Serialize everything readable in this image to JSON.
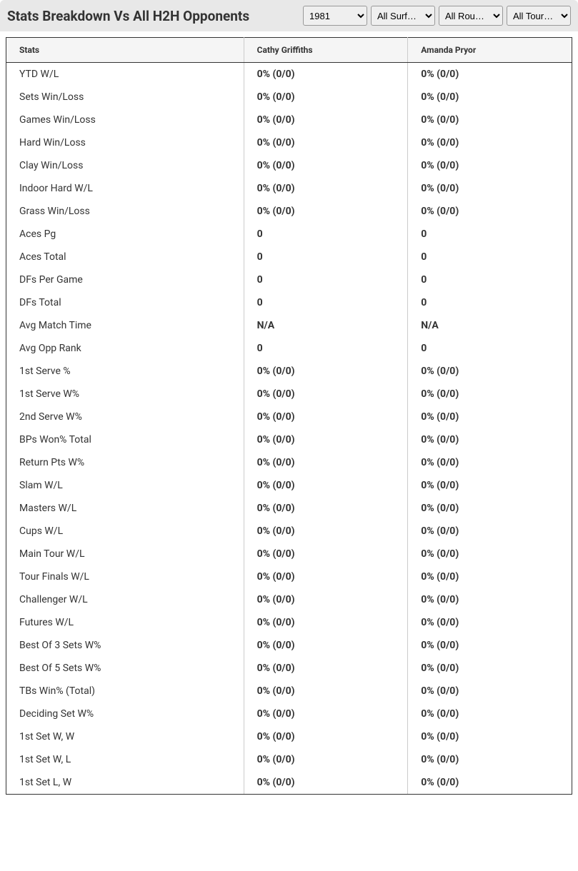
{
  "header": {
    "title": "Stats Breakdown Vs All H2H Opponents",
    "filters": {
      "year": {
        "selected": "1981",
        "options": [
          "1981"
        ]
      },
      "surface": {
        "selected": "All Surf…",
        "options": [
          "All Surf…"
        ]
      },
      "round": {
        "selected": "All Rou…",
        "options": [
          "All Rou…"
        ]
      },
      "tour": {
        "selected": "All Tour…",
        "options": [
          "All Tour…"
        ]
      }
    }
  },
  "table": {
    "columns": [
      "Stats",
      "Cathy Griffiths",
      "Amanda Pryor"
    ],
    "column_widths": [
      "42%",
      "29%",
      "29%"
    ],
    "header_bg": "#f5f5f5",
    "header_fontsize": 12,
    "cell_fontsize": 14,
    "border_color": "#333333",
    "inner_border_color": "#cccccc",
    "rows": [
      [
        "YTD W/L",
        "0% (0/0)",
        "0% (0/0)"
      ],
      [
        "Sets Win/Loss",
        "0% (0/0)",
        "0% (0/0)"
      ],
      [
        "Games Win/Loss",
        "0% (0/0)",
        "0% (0/0)"
      ],
      [
        "Hard Win/Loss",
        "0% (0/0)",
        "0% (0/0)"
      ],
      [
        "Clay Win/Loss",
        "0% (0/0)",
        "0% (0/0)"
      ],
      [
        "Indoor Hard W/L",
        "0% (0/0)",
        "0% (0/0)"
      ],
      [
        "Grass Win/Loss",
        "0% (0/0)",
        "0% (0/0)"
      ],
      [
        "Aces Pg",
        "0",
        "0"
      ],
      [
        "Aces Total",
        "0",
        "0"
      ],
      [
        "DFs Per Game",
        "0",
        "0"
      ],
      [
        "DFs Total",
        "0",
        "0"
      ],
      [
        "Avg Match Time",
        "N/A",
        "N/A"
      ],
      [
        "Avg Opp Rank",
        "0",
        "0"
      ],
      [
        "1st Serve %",
        "0% (0/0)",
        "0% (0/0)"
      ],
      [
        "1st Serve W%",
        "0% (0/0)",
        "0% (0/0)"
      ],
      [
        "2nd Serve W%",
        "0% (0/0)",
        "0% (0/0)"
      ],
      [
        "BPs Won% Total",
        "0% (0/0)",
        "0% (0/0)"
      ],
      [
        "Return Pts W%",
        "0% (0/0)",
        "0% (0/0)"
      ],
      [
        "Slam W/L",
        "0% (0/0)",
        "0% (0/0)"
      ],
      [
        "Masters W/L",
        "0% (0/0)",
        "0% (0/0)"
      ],
      [
        "Cups W/L",
        "0% (0/0)",
        "0% (0/0)"
      ],
      [
        "Main Tour W/L",
        "0% (0/0)",
        "0% (0/0)"
      ],
      [
        "Tour Finals W/L",
        "0% (0/0)",
        "0% (0/0)"
      ],
      [
        "Challenger W/L",
        "0% (0/0)",
        "0% (0/0)"
      ],
      [
        "Futures W/L",
        "0% (0/0)",
        "0% (0/0)"
      ],
      [
        "Best Of 3 Sets W%",
        "0% (0/0)",
        "0% (0/0)"
      ],
      [
        "Best Of 5 Sets W%",
        "0% (0/0)",
        "0% (0/0)"
      ],
      [
        "TBs Win% (Total)",
        "0% (0/0)",
        "0% (0/0)"
      ],
      [
        "Deciding Set W%",
        "0% (0/0)",
        "0% (0/0)"
      ],
      [
        "1st Set W, W",
        "0% (0/0)",
        "0% (0/0)"
      ],
      [
        "1st Set W, L",
        "0% (0/0)",
        "0% (0/0)"
      ],
      [
        "1st Set L, W",
        "0% (0/0)",
        "0% (0/0)"
      ]
    ]
  },
  "colors": {
    "header_bar_bg": "#e8e8e8",
    "body_bg": "#ffffff",
    "text": "#333333"
  }
}
